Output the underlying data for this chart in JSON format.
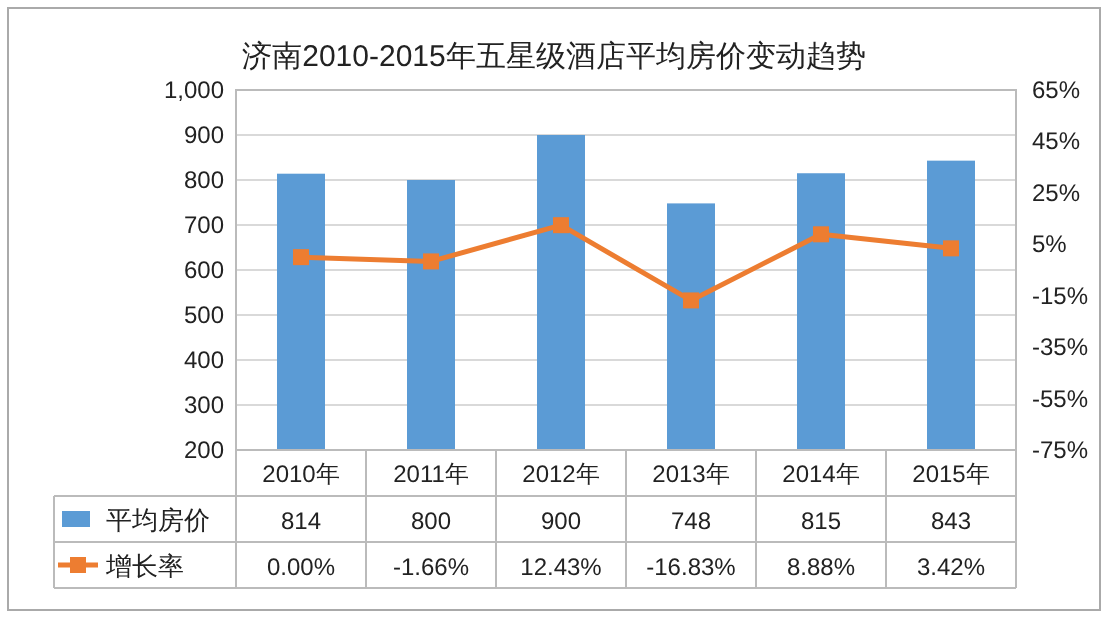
{
  "chart_data": {
    "type": "bar",
    "title": "济南2010-2015年五星级酒店平均房价变动趋势",
    "categories": [
      "2010年",
      "2011年",
      "2012年",
      "2013年",
      "2014年",
      "2015年"
    ],
    "series": [
      {
        "name": "平均房价",
        "color": "#5b9bd5",
        "values": [
          814,
          800,
          900,
          748,
          815,
          843
        ],
        "value_labels": [
          "814",
          "800",
          "900",
          "748",
          "815",
          "843"
        ]
      },
      {
        "name": "增长率",
        "type": "line",
        "axis": "y2",
        "color": "#ed7d31",
        "marker": "square",
        "values": [
          0.0,
          -1.66,
          12.43,
          -16.83,
          8.88,
          3.42
        ],
        "value_labels": [
          "0.00%",
          "-1.66%",
          "12.43%",
          "-16.83%",
          "8.88%",
          "3.42%"
        ]
      }
    ],
    "ylim": [
      200,
      1000
    ],
    "yticks": [
      200,
      300,
      400,
      500,
      600,
      700,
      800,
      900,
      {
        "value": 1000,
        "label": "1,000"
      }
    ],
    "y2lim": [
      -75,
      65
    ],
    "y2ticks": [
      {
        "value": -75,
        "label": "-75%"
      },
      {
        "value": -55,
        "label": "-55%"
      },
      {
        "value": -35,
        "label": "-35%"
      },
      {
        "value": -15,
        "label": "-15%"
      },
      {
        "value": 5,
        "label": "5%"
      },
      {
        "value": 25,
        "label": "25%"
      },
      {
        "value": 45,
        "label": "45%"
      },
      {
        "value": 65,
        "label": "65%"
      }
    ],
    "grid": "y",
    "legend": "bottom"
  }
}
